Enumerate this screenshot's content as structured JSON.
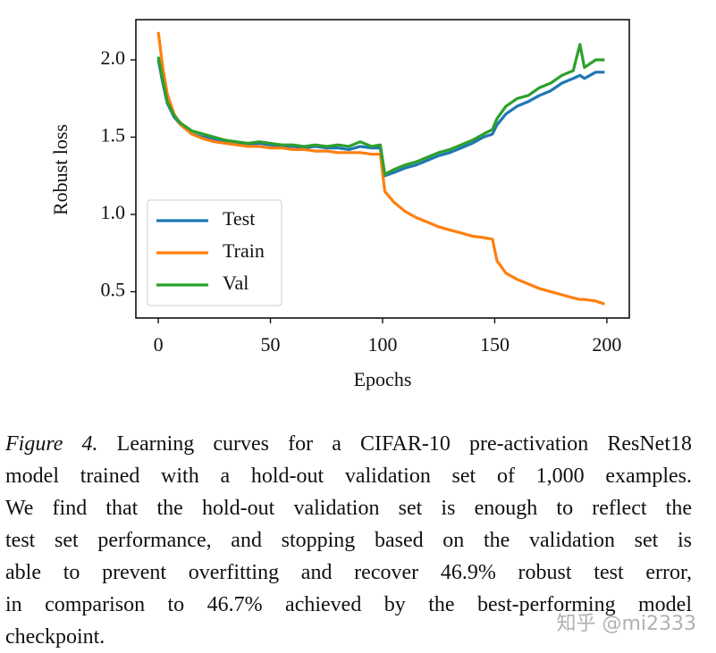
{
  "chart_data": {
    "type": "line",
    "xlabel": "Epochs",
    "ylabel": "Robust loss",
    "x": [
      0,
      2,
      4,
      7,
      10,
      15,
      20,
      25,
      30,
      35,
      40,
      45,
      50,
      55,
      60,
      65,
      70,
      75,
      80,
      85,
      90,
      95,
      99,
      101,
      105,
      110,
      115,
      120,
      125,
      130,
      135,
      140,
      145,
      149,
      151,
      155,
      160,
      165,
      170,
      175,
      180,
      185,
      188,
      190,
      195,
      199
    ],
    "series": [
      {
        "name": "Test",
        "color": "#1f77b4",
        "values": [
          2.0,
          1.85,
          1.72,
          1.63,
          1.58,
          1.52,
          1.5,
          1.49,
          1.47,
          1.46,
          1.45,
          1.46,
          1.45,
          1.44,
          1.44,
          1.43,
          1.44,
          1.43,
          1.43,
          1.42,
          1.44,
          1.43,
          1.43,
          1.25,
          1.27,
          1.3,
          1.32,
          1.35,
          1.38,
          1.4,
          1.43,
          1.46,
          1.5,
          1.52,
          1.58,
          1.65,
          1.7,
          1.73,
          1.77,
          1.8,
          1.85,
          1.88,
          1.9,
          1.88,
          1.92,
          1.92
        ]
      },
      {
        "name": "Train",
        "color": "#ff7f0e",
        "values": [
          2.18,
          1.95,
          1.78,
          1.65,
          1.58,
          1.52,
          1.49,
          1.47,
          1.46,
          1.45,
          1.44,
          1.44,
          1.43,
          1.43,
          1.42,
          1.42,
          1.41,
          1.41,
          1.4,
          1.4,
          1.4,
          1.39,
          1.39,
          1.15,
          1.08,
          1.02,
          0.98,
          0.95,
          0.92,
          0.9,
          0.88,
          0.86,
          0.85,
          0.84,
          0.7,
          0.62,
          0.58,
          0.55,
          0.52,
          0.5,
          0.48,
          0.46,
          0.45,
          0.45,
          0.44,
          0.42
        ]
      },
      {
        "name": "Val",
        "color": "#2ca02c",
        "values": [
          2.02,
          1.87,
          1.73,
          1.64,
          1.59,
          1.54,
          1.52,
          1.5,
          1.48,
          1.47,
          1.46,
          1.47,
          1.46,
          1.45,
          1.45,
          1.44,
          1.45,
          1.44,
          1.45,
          1.44,
          1.47,
          1.44,
          1.45,
          1.26,
          1.29,
          1.32,
          1.34,
          1.37,
          1.4,
          1.42,
          1.45,
          1.48,
          1.52,
          1.55,
          1.62,
          1.7,
          1.75,
          1.77,
          1.82,
          1.85,
          1.9,
          1.93,
          2.1,
          1.95,
          2.0,
          2.0
        ]
      }
    ],
    "xlim": [
      -10,
      210
    ],
    "xticks": [
      0,
      50,
      100,
      150,
      200
    ],
    "ylim": [
      0.33,
      2.26
    ],
    "yticks": [
      {
        "value": 0.5,
        "label": "0.5"
      },
      {
        "value": 1,
        "label": "1.0"
      },
      {
        "value": 1.5,
        "label": "1.5"
      },
      {
        "value": 2,
        "label": "2.0"
      }
    ],
    "legend": "lower left",
    "grid": false
  },
  "caption": {
    "label": "Figure 4.",
    "lines": [
      "Learning curves for a CIFAR-10 pre-activation ResNet18",
      "model trained with a hold-out validation set of 1,000 examples.",
      "We find that the hold-out validation set is enough to reflect the",
      "test set performance, and stopping based on the validation set is",
      "able to prevent overfitting and recover 46.9% robust test error,",
      "in comparison to 46.7% achieved by the best-performing model",
      "checkpoint."
    ]
  },
  "watermark": "知乎 @mi2333"
}
